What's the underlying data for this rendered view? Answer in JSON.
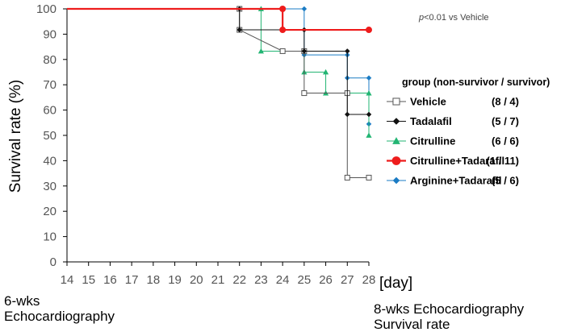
{
  "chart_data": {
    "type": "line",
    "subtype": "step",
    "xlabel": "[day]",
    "ylabel": "Survival rate (%)",
    "xlim": [
      14,
      28
    ],
    "ylim": [
      0,
      100
    ],
    "xticks": [
      14,
      15,
      16,
      17,
      18,
      19,
      20,
      21,
      22,
      23,
      24,
      25,
      26,
      27,
      28
    ],
    "yticks": [
      0,
      10,
      20,
      30,
      40,
      50,
      60,
      70,
      80,
      90,
      100
    ],
    "annotation": "p<0.01 vs Vehicle",
    "annotation_italic": "p",
    "annotation_rest": "<0.01 vs Vehicle",
    "legend_title": "group (non-survivor / survivor)",
    "legend_placement": "right",
    "grid": false,
    "series": [
      {
        "name": "Vehicle",
        "counts": "(8 / 4)",
        "color": "#555555",
        "marker": "open-square",
        "x": [
          14,
          22,
          22,
          24,
          25,
          25,
          27,
          27,
          28
        ],
        "y": [
          100,
          100,
          91.7,
          83.3,
          83.3,
          66.7,
          66.7,
          33.3,
          33.3
        ]
      },
      {
        "name": "Tadalafil",
        "counts": "(5 / 7)",
        "color": "#111111",
        "marker": "diamond",
        "x": [
          14,
          22,
          22,
          25,
          25,
          27,
          27,
          28
        ],
        "y": [
          100,
          100,
          91.7,
          91.7,
          83.3,
          83.3,
          58.3,
          58.3
        ]
      },
      {
        "name": "Citrulline",
        "counts": "(6 / 6)",
        "color": "#22b573",
        "marker": "triangle",
        "x": [
          14,
          23,
          23,
          24,
          25,
          25,
          26,
          26,
          28,
          28
        ],
        "y": [
          100,
          100,
          83.3,
          83.3,
          83.3,
          75,
          75,
          66.7,
          66.7,
          50
        ]
      },
      {
        "name": "Citrulline+Tadarafil",
        "counts": "(1 / 11)",
        "color": "#ee1c1c",
        "marker": "circle",
        "x": [
          14,
          24,
          24,
          28
        ],
        "y": [
          100,
          100,
          91.7,
          91.7
        ]
      },
      {
        "name": "Arginine+Tadarafil",
        "counts": "(5 / 6)",
        "color": "#1a7bc4",
        "marker": "diamond",
        "x": [
          14,
          25,
          25,
          27,
          27,
          28,
          28
        ],
        "y": [
          100,
          100,
          81.8,
          81.8,
          72.7,
          72.7,
          54.5
        ]
      }
    ]
  },
  "footer": {
    "left_line1": "6-wks",
    "left_line2": "Echocardiography",
    "right_line1": "8-wks Echocardiography",
    "right_line2": "Survival rate"
  }
}
